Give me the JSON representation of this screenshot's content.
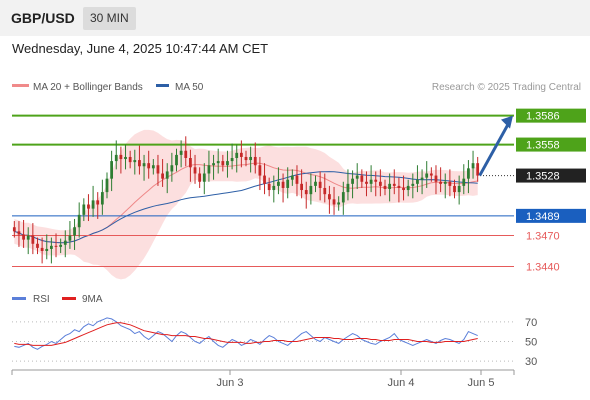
{
  "header": {
    "symbol": "GBP/USD",
    "timeframe": "30 MIN"
  },
  "datetime": "Wednesday, June 4, 2025 10:47:44 AM CET",
  "copyright": "Research © 2025 Trading Central",
  "colors": {
    "resistance": "#4ea31a",
    "pivot": "#1a5fbf",
    "support": "#e65a5a",
    "current": "#222222",
    "ma20": "#e88",
    "ma50": "#2d5fa6",
    "bollinger_fill": "#fbd4d4",
    "candle_up": "#2e7d32",
    "candle_down": "#c62828",
    "arrow": "#2d5fa6",
    "rsi": "#5b7fd9",
    "rsi_ma": "#e02020"
  },
  "chart_data": [
    {
      "type": "candlestick",
      "legend": [
        {
          "name": "MA 20 + Bollinger Bands",
          "color": "#f08a8a"
        },
        {
          "name": "MA 50",
          "color": "#2d5fa6"
        }
      ],
      "x_ticks": [
        "Jun 3",
        "Jun 4",
        "Jun 5"
      ],
      "ylim": [
        1.3425,
        1.3605
      ],
      "levels": [
        {
          "value": "1.3586",
          "kind": "resistance"
        },
        {
          "value": "1.3558",
          "kind": "resistance"
        },
        {
          "value": "1.3528",
          "kind": "current"
        },
        {
          "value": "1.3489",
          "kind": "pivot"
        },
        {
          "value": "1.3470",
          "kind": "support"
        },
        {
          "value": "1.3440",
          "kind": "support"
        }
      ],
      "projection": {
        "from": 1.3528,
        "to": 1.3586
      },
      "candles_close": [
        1.3474,
        1.3471,
        1.3466,
        1.347,
        1.3462,
        1.3458,
        1.3455,
        1.3457,
        1.346,
        1.3459,
        1.3461,
        1.3465,
        1.347,
        1.3478,
        1.349,
        1.35,
        1.3496,
        1.3504,
        1.35,
        1.3512,
        1.3525,
        1.3542,
        1.3548,
        1.3544,
        1.3546,
        1.3541,
        1.3543,
        1.3537,
        1.354,
        1.3535,
        1.3538,
        1.353,
        1.3525,
        1.3532,
        1.3538,
        1.3548,
        1.3552,
        1.3545,
        1.3536,
        1.353,
        1.3522,
        1.353,
        1.3538,
        1.354,
        1.3542,
        1.3538,
        1.3542,
        1.3545,
        1.355,
        1.3546,
        1.3543,
        1.3546,
        1.3538,
        1.3528,
        1.352,
        1.3514,
        1.3518,
        1.3522,
        1.3516,
        1.3524,
        1.3528,
        1.352,
        1.3514,
        1.351,
        1.3518,
        1.3522,
        1.3516,
        1.351,
        1.3505,
        1.35,
        1.3502,
        1.3512,
        1.352,
        1.3525,
        1.3528,
        1.3522,
        1.352,
        1.3524,
        1.3522,
        1.3518,
        1.3515,
        1.352,
        1.3518,
        1.3516,
        1.3514,
        1.3518,
        1.352,
        1.3524,
        1.3526,
        1.353,
        1.3528,
        1.3522,
        1.352,
        1.3522,
        1.3518,
        1.3512,
        1.3518,
        1.3525,
        1.3535,
        1.354,
        1.3528
      ]
    },
    {
      "type": "line",
      "title": "RSI",
      "legend": [
        {
          "name": "RSI",
          "color": "#5b7fd9"
        },
        {
          "name": "9MA",
          "color": "#e02020"
        }
      ],
      "y_ticks": [
        "70",
        "50",
        "30"
      ],
      "ylim": [
        25,
        80
      ],
      "rsi": [
        45,
        44,
        46,
        48,
        44,
        42,
        45,
        47,
        50,
        48,
        52,
        56,
        58,
        62,
        60,
        65,
        68,
        66,
        70,
        72,
        74,
        73,
        70,
        66,
        64,
        62,
        58,
        60,
        55,
        52,
        56,
        60,
        58,
        54,
        50,
        56,
        60,
        58,
        54,
        50,
        48,
        52,
        55,
        50,
        46,
        44,
        48,
        52,
        50,
        46,
        48,
        52,
        50,
        47,
        52,
        56,
        54,
        50,
        48,
        46,
        50,
        54,
        58,
        60,
        56,
        52,
        50,
        54,
        52,
        50,
        48,
        52,
        55,
        58,
        56,
        52,
        50,
        48,
        47,
        50,
        52,
        54,
        58,
        52,
        50,
        48,
        46,
        48,
        50,
        52,
        50,
        48,
        51,
        53,
        52,
        50,
        48,
        52,
        60,
        58,
        56
      ],
      "ma9": [
        48,
        47,
        47,
        47,
        46,
        46,
        46,
        46,
        46,
        47,
        48,
        49,
        51,
        53,
        55,
        57,
        59,
        61,
        63,
        65,
        67,
        68,
        69,
        69,
        68,
        67,
        65,
        63,
        61,
        60,
        59,
        58,
        57,
        57,
        56,
        56,
        56,
        56,
        55,
        55,
        54,
        53,
        53,
        52,
        51,
        50,
        49,
        49,
        49,
        49,
        48,
        48,
        49,
        49,
        50,
        50,
        51,
        51,
        51,
        50,
        50,
        50,
        51,
        52,
        53,
        54,
        54,
        54,
        54,
        53,
        53,
        52,
        52,
        52,
        53,
        53,
        53,
        52,
        52,
        51,
        51,
        51,
        52,
        52,
        52,
        52,
        51,
        50,
        50,
        50,
        49,
        49,
        49,
        50,
        50,
        50,
        50,
        50,
        51,
        52,
        53
      ]
    }
  ]
}
